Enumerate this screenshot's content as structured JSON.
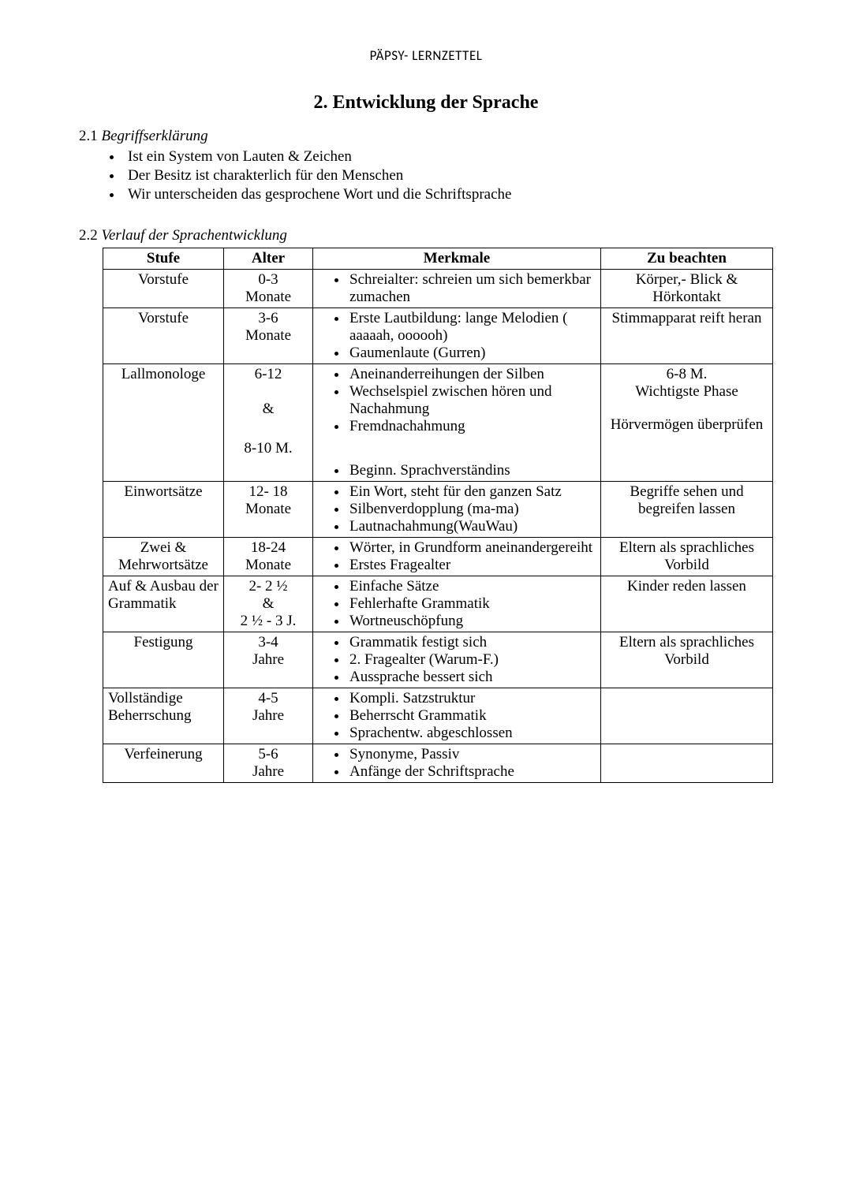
{
  "header": "PÄPSY- LERNZETTEL",
  "title": "2. Entwicklung der Sprache",
  "section21": {
    "num": "2.1",
    "name": "Begriffserklärung"
  },
  "bullets21": [
    "Ist ein System von Lauten & Zeichen",
    "Der Besitz ist charakterlich für den Menschen",
    "Wir unterscheiden das gesprochene Wort und die Schriftsprache"
  ],
  "section22": {
    "num": "2.2",
    "name": "Verlauf der Sprachentwicklung"
  },
  "table": {
    "headers": [
      "Stufe",
      "Alter",
      "Merkmale",
      "Zu beachten"
    ],
    "rows": [
      {
        "stufe": "Vorstufe",
        "alter": [
          "0-3",
          "Monate"
        ],
        "merkmale": [
          "Schreialter: schreien um sich bemerkbar zumachen"
        ],
        "beachten": [
          "Körper,- Blick & Hörkontakt"
        ]
      },
      {
        "stufe": "Vorstufe",
        "alter": [
          "3-6",
          "Monate"
        ],
        "merkmale": [
          "Erste Lautbildung: lange Melodien ( aaaaah, oooooh)",
          "Gaumenlaute (Gurren)"
        ],
        "beachten": [
          "Stimmapparat reift heran"
        ]
      },
      {
        "stufe": "Lallmonologe",
        "alterBlocks": [
          {
            "lines": [
              "6-12",
              "",
              "&"
            ]
          },
          {
            "lines": [
              "8-10 M."
            ]
          }
        ],
        "merkmaleBlocks": [
          [
            "Aneinanderreihungen der Silben",
            "Wechselspiel zwischen hören und Nachahmung",
            "Fremdnachahmung"
          ],
          [
            "Beginn. Sprachverständins"
          ]
        ],
        "beachtenBlocks": [
          [
            "6-8 M.",
            "Wichtigste Phase"
          ],
          [
            "Hörvermögen überprüfen"
          ]
        ]
      },
      {
        "stufe": "Einwortsätze",
        "alter": [
          "12- 18",
          "Monate"
        ],
        "merkmale": [
          "Ein Wort, steht für den ganzen Satz",
          "Silbenverdopplung (ma-ma)",
          "Lautnachahmung(WauWau)"
        ],
        "beachten": [
          "Begriffe sehen und begreifen lassen"
        ]
      },
      {
        "stufe": "Zwei & Mehrwortsätze",
        "alter": [
          "18-24",
          "Monate"
        ],
        "merkmale": [
          "Wörter, in Grundform aneinandergereiht",
          "Erstes Fragealter"
        ],
        "beachten": [
          "Eltern  als sprachliches Vorbild"
        ]
      },
      {
        "stufe": "Auf & Ausbau der Grammatik",
        "stufeAlign": "left",
        "alter": [
          "2- 2 ½",
          "&",
          "2 ½ - 3 J."
        ],
        "merkmale": [
          "Einfache Sätze",
          "Fehlerhafte Grammatik",
          "Wortneuschöpfung"
        ],
        "beachten": [
          "Kinder reden lassen"
        ]
      },
      {
        "stufe": "Festigung",
        "alter": [
          "3-4",
          "Jahre"
        ],
        "merkmale": [
          "Grammatik festigt sich",
          "2. Fragealter (Warum-F.)",
          "Aussprache bessert sich"
        ],
        "beachten": [
          "Eltern  als sprachliches Vorbild"
        ]
      },
      {
        "stufe": "Vollständige Beherrschung",
        "stufeAlign": "left",
        "alter": [
          "4-5",
          "Jahre"
        ],
        "merkmale": [
          "Kompli. Satzstruktur",
          "Beherrscht Grammatik",
          "Sprachentw. abgeschlossen"
        ],
        "beachten": []
      },
      {
        "stufe": "Verfeinerung",
        "alter": [
          "5-6",
          "Jahre"
        ],
        "merkmale": [
          "Synonyme, Passiv",
          "Anfänge der Schriftsprache"
        ],
        "beachten": []
      }
    ]
  }
}
